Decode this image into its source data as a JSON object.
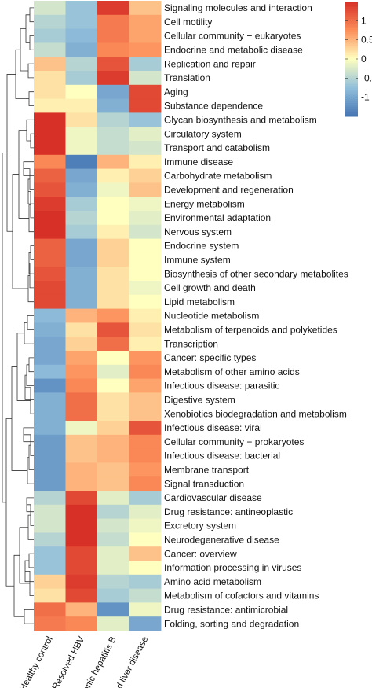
{
  "chart_data": {
    "type": "heatmap",
    "title": "",
    "columns": [
      "Healthy control",
      "Resolved HBV",
      "Chronic hepatitis B",
      "Advanced liver disease"
    ],
    "rows": [
      "Signaling molecules and interaction",
      "Cell motility",
      "Cellular community − eukaryotes",
      "Endocrine and metabolic disease",
      "Replication and repair",
      "Translation",
      "Aging",
      "Substance dependence",
      "Glycan biosynthesis and metabolism",
      "Circulatory system",
      "Transport and catabolism",
      "Immune disease",
      "Carbohydrate metabolism",
      "Development and regeneration",
      "Energy metabolism",
      "Environmental adaptation",
      "Nervous system",
      "Endocrine system",
      "Immune system",
      "Biosynthesis of other secondary metabolites",
      "Cell growth and death",
      "Lipid metabolism",
      "Nucleotide metabolism",
      "Metabolism of terpenoids and polyketides",
      "Transcription",
      "Cancer: specific types",
      "Metabolism of other amino acids",
      "Infectious disease: parasitic",
      "Digestive system",
      "Xenobiotics biodegradation and metabolism",
      "Infectious disease: viral",
      "Cellular community − prokaryotes",
      "Infectious disease: bacterial",
      "Membrane transport",
      "Signal transduction",
      "Cardiovascular disease",
      "Drug resistance: antineoplastic",
      "Excretory system",
      "Neurodegenerative disease",
      "Cancer: overview",
      "Information processing in viruses",
      "Amino acid metabolism",
      "Metabolism of cofactors and vitamins",
      "Drug resistance: antimicrobial",
      "Folding, sorting and degradation"
    ],
    "values": [
      [
        -0.3,
        -0.7,
        1.4,
        0.4
      ],
      [
        -0.5,
        -0.7,
        0.9,
        0.6
      ],
      [
        -0.6,
        -0.8,
        0.9,
        0.6
      ],
      [
        -0.4,
        -0.9,
        0.8,
        0.7
      ],
      [
        0.4,
        -0.5,
        1.2,
        -0.6
      ],
      [
        0.2,
        -0.6,
        1.4,
        -0.3
      ],
      [
        0.2,
        0.0,
        -1.0,
        1.3
      ],
      [
        0.1,
        0.1,
        -0.9,
        1.3
      ],
      [
        1.5,
        0.2,
        -0.5,
        -0.7
      ],
      [
        1.5,
        -0.1,
        -0.4,
        -0.2
      ],
      [
        1.5,
        -0.1,
        -0.4,
        -0.3
      ],
      [
        0.8,
        -1.4,
        0.5,
        0.1
      ],
      [
        1.1,
        -1.0,
        0.1,
        0.3
      ],
      [
        1.2,
        -0.9,
        -0.1,
        0.4
      ],
      [
        1.4,
        -0.6,
        0.0,
        -0.1
      ],
      [
        1.5,
        -0.5,
        0.0,
        -0.2
      ],
      [
        1.5,
        -0.6,
        0.1,
        -0.3
      ],
      [
        1.1,
        -1.0,
        0.3,
        0.0
      ],
      [
        1.1,
        -1.0,
        0.3,
        0.0
      ],
      [
        1.2,
        -0.9,
        0.2,
        0.0
      ],
      [
        1.3,
        -0.9,
        0.2,
        -0.1
      ],
      [
        1.3,
        -0.9,
        0.2,
        0.0
      ],
      [
        -0.8,
        0.5,
        0.7,
        0.1
      ],
      [
        -0.9,
        0.2,
        1.2,
        0.2
      ],
      [
        -1.0,
        0.3,
        1.0,
        0.1
      ],
      [
        -1.0,
        0.6,
        0.0,
        0.7
      ],
      [
        -0.8,
        0.7,
        -0.2,
        0.8
      ],
      [
        -1.2,
        0.8,
        0.0,
        0.6
      ],
      [
        -0.9,
        1.0,
        0.2,
        0.4
      ],
      [
        -0.9,
        1.0,
        0.2,
        0.4
      ],
      [
        -0.9,
        -0.1,
        0.3,
        1.2
      ],
      [
        -1.1,
        0.4,
        0.5,
        0.8
      ],
      [
        -1.1,
        0.4,
        0.5,
        0.8
      ],
      [
        -1.1,
        0.5,
        0.4,
        0.7
      ],
      [
        -1.1,
        0.5,
        0.4,
        0.8
      ],
      [
        -0.5,
        1.3,
        -0.2,
        -0.6
      ],
      [
        -0.3,
        1.5,
        -0.5,
        -0.2
      ],
      [
        -0.3,
        1.5,
        -0.3,
        -0.1
      ],
      [
        -0.5,
        1.5,
        -0.4,
        0.0
      ],
      [
        -0.7,
        1.3,
        -0.2,
        0.4
      ],
      [
        -0.7,
        1.3,
        -0.2,
        0.0
      ],
      [
        0.3,
        1.4,
        -0.5,
        -0.6
      ],
      [
        0.2,
        1.3,
        -0.6,
        -0.4
      ],
      [
        1.0,
        0.5,
        -1.2,
        -0.1
      ],
      [
        0.9,
        0.8,
        -0.2,
        -1.0
      ]
    ],
    "legend": {
      "ticks": [
        1,
        0.5,
        0,
        -0.5,
        -1
      ],
      "tick_labels": [
        "1",
        "0.5",
        "0",
        "-0.5",
        "-1"
      ],
      "range": [
        -1.5,
        1.5
      ]
    },
    "colors": {
      "low": "#4575b4",
      "mid_low": "#91bfdb",
      "mid": "#ffffbf",
      "mid_high": "#fc8d59",
      "high": "#d73027"
    }
  }
}
